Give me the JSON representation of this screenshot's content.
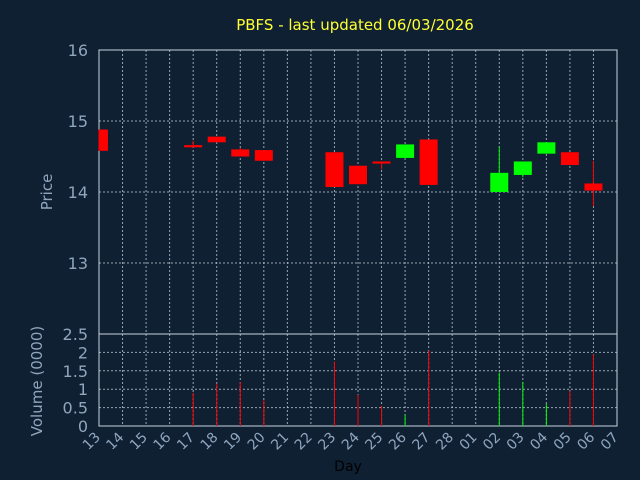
{
  "colors": {
    "background": "#0f2033",
    "title": "#ffff33",
    "text": "#8fa6bd",
    "up": "#00ff00",
    "down": "#ff0000",
    "grid": "#c9d2dc"
  },
  "chart_data": {
    "type": "candlestick",
    "title": "PBFS - last updated 06/03/2026",
    "xlabel": "Day",
    "ylabel_price": "Price",
    "ylabel_volume": "Volume (0000)",
    "price_ylim": [
      12,
      16
    ],
    "price_ticks": [
      "13",
      "14",
      "15",
      "16"
    ],
    "volume_ylim": [
      0,
      2.5
    ],
    "volume_ticks": [
      "0",
      "0.5",
      "1",
      "1.5",
      "2",
      "2.5"
    ],
    "day_labels": [
      "13",
      "14",
      "15",
      "16",
      "17",
      "18",
      "19",
      "20",
      "21",
      "22",
      "23",
      "24",
      "25",
      "26",
      "27",
      "28",
      "01",
      "02",
      "03",
      "04",
      "05",
      "06",
      "07"
    ],
    "candles": [
      {
        "day": "13",
        "open": 14.88,
        "close": 14.58,
        "high": 14.88,
        "low": 14.58,
        "volume": 0.0
      },
      {
        "day": "17",
        "open": 14.66,
        "close": 14.63,
        "high": 14.72,
        "low": 14.63,
        "volume": 0.9
      },
      {
        "day": "18",
        "open": 14.78,
        "close": 14.7,
        "high": 14.78,
        "low": 14.7,
        "volume": 1.15
      },
      {
        "day": "19",
        "open": 14.6,
        "close": 14.5,
        "high": 14.62,
        "low": 14.5,
        "volume": 1.2
      },
      {
        "day": "20",
        "open": 14.59,
        "close": 14.44,
        "high": 14.59,
        "low": 14.44,
        "volume": 0.7
      },
      {
        "day": "23",
        "open": 14.56,
        "close": 14.07,
        "high": 14.56,
        "low": 14.07,
        "volume": 1.75
      },
      {
        "day": "24",
        "open": 14.37,
        "close": 14.11,
        "high": 14.37,
        "low": 14.11,
        "volume": 0.85
      },
      {
        "day": "25",
        "open": 14.43,
        "close": 14.4,
        "high": 14.43,
        "low": 14.32,
        "volume": 0.55
      },
      {
        "day": "26",
        "open": 14.48,
        "close": 14.67,
        "high": 14.67,
        "low": 14.48,
        "volume": 0.3
      },
      {
        "day": "27",
        "open": 14.74,
        "close": 14.1,
        "high": 14.74,
        "low": 14.1,
        "volume": 2.05
      },
      {
        "day": "02",
        "open": 14.0,
        "close": 14.27,
        "high": 14.64,
        "low": 14.0,
        "volume": 1.45
      },
      {
        "day": "03",
        "open": 14.24,
        "close": 14.43,
        "high": 14.43,
        "low": 14.21,
        "volume": 1.2
      },
      {
        "day": "04",
        "open": 14.54,
        "close": 14.7,
        "high": 14.7,
        "low": 14.54,
        "volume": 0.6
      },
      {
        "day": "05",
        "open": 14.56,
        "close": 14.38,
        "high": 14.56,
        "low": 14.38,
        "volume": 0.95
      },
      {
        "day": "06",
        "open": 14.12,
        "close": 14.02,
        "high": 14.44,
        "low": 13.8,
        "volume": 1.95
      }
    ]
  }
}
